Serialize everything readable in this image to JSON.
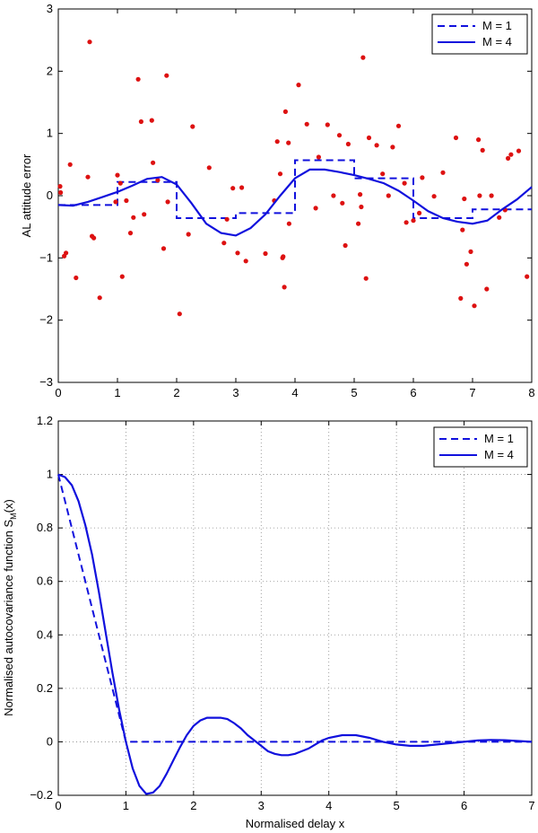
{
  "chart_data": [
    {
      "type": "scatter",
      "title": "",
      "xlabel": "",
      "ylabel": "AL attitude error",
      "xlim": [
        0,
        8
      ],
      "ylim": [
        -3,
        3
      ],
      "xticks": [
        0,
        1,
        2,
        3,
        4,
        5,
        6,
        7,
        8
      ],
      "yticks": [
        -3,
        -2,
        -1,
        0,
        1,
        2,
        3
      ],
      "grid": false,
      "legend_position": "top-right",
      "series": [
        {
          "name": "M = 1",
          "style": "dashed",
          "color": "#1111dd",
          "steps": [
            {
              "x0": 0,
              "x1": 1,
              "y": -0.15
            },
            {
              "x0": 1,
              "x1": 2,
              "y": 0.22
            },
            {
              "x0": 2,
              "x1": 3,
              "y": -0.36
            },
            {
              "x0": 3,
              "x1": 4,
              "y": -0.28
            },
            {
              "x0": 4,
              "x1": 5,
              "y": 0.57
            },
            {
              "x0": 5,
              "x1": 6,
              "y": 0.28
            },
            {
              "x0": 6,
              "x1": 7,
              "y": -0.36
            },
            {
              "x0": 7,
              "x1": 8,
              "y": -0.22
            }
          ]
        },
        {
          "name": "M = 4",
          "style": "solid",
          "color": "#1111dd",
          "x": [
            0,
            0.25,
            0.5,
            0.75,
            1.0,
            1.25,
            1.5,
            1.75,
            2.0,
            2.25,
            2.5,
            2.75,
            3.0,
            3.25,
            3.5,
            3.75,
            4.0,
            4.25,
            4.5,
            4.75,
            5.0,
            5.25,
            5.5,
            5.75,
            6.0,
            6.25,
            6.5,
            6.75,
            7.0,
            7.25,
            7.5,
            7.75,
            8.0
          ],
          "y": [
            -0.15,
            -0.16,
            -0.1,
            -0.02,
            0.06,
            0.16,
            0.27,
            0.3,
            0.18,
            -0.12,
            -0.45,
            -0.6,
            -0.64,
            -0.52,
            -0.3,
            0.0,
            0.28,
            0.42,
            0.42,
            0.38,
            0.33,
            0.27,
            0.2,
            0.08,
            -0.08,
            -0.25,
            -0.36,
            -0.42,
            -0.45,
            -0.4,
            -0.22,
            -0.06,
            0.14
          ]
        },
        {
          "name": "data points",
          "style": "markers",
          "color": "#dd1111",
          "x": [
            0.03,
            0.04,
            0.1,
            0.13,
            0.2,
            0.3,
            0.5,
            0.53,
            0.57,
            0.6,
            0.7,
            0.97,
            1.0,
            1.05,
            1.08,
            1.15,
            1.22,
            1.27,
            1.35,
            1.4,
            1.45,
            1.58,
            1.6,
            1.68,
            1.78,
            1.83,
            1.85,
            2.05,
            2.2,
            2.27,
            2.55,
            2.8,
            2.85,
            2.95,
            3.03,
            3.1,
            3.17,
            3.5,
            3.65,
            3.7,
            3.75,
            3.79,
            3.8,
            3.82,
            3.84,
            3.89,
            3.9,
            4.06,
            4.2,
            4.35,
            4.4,
            4.55,
            4.65,
            4.75,
            4.8,
            4.85,
            4.9,
            5.07,
            5.1,
            5.12,
            5.15,
            5.2,
            5.25,
            5.38,
            5.48,
            5.58,
            5.65,
            5.75,
            5.85,
            5.88,
            6.0,
            6.1,
            6.15,
            6.35,
            6.5,
            6.72,
            6.8,
            6.83,
            6.86,
            6.9,
            6.97,
            7.03,
            7.1,
            7.12,
            7.17,
            7.24,
            7.32,
            7.45,
            7.55,
            7.6,
            7.65,
            7.78,
            7.92
          ],
          "y": [
            0.15,
            0.05,
            -0.97,
            -0.92,
            0.5,
            -1.32,
            0.3,
            2.47,
            -0.65,
            -0.68,
            -1.64,
            -0.1,
            0.33,
            0.2,
            -1.3,
            -0.08,
            -0.6,
            -0.35,
            1.87,
            1.19,
            -0.3,
            1.21,
            0.53,
            0.25,
            -0.85,
            1.93,
            -0.1,
            -1.9,
            -0.62,
            1.11,
            0.45,
            -0.76,
            -0.38,
            0.12,
            -0.92,
            0.13,
            -1.05,
            -0.93,
            -0.08,
            0.87,
            0.35,
            -1.0,
            -0.98,
            -1.47,
            1.35,
            0.85,
            -0.45,
            1.78,
            1.15,
            -0.2,
            0.62,
            1.14,
            0.0,
            0.97,
            -0.12,
            -0.8,
            0.83,
            -0.45,
            0.02,
            -0.18,
            2.22,
            -1.33,
            0.93,
            0.81,
            0.35,
            0.0,
            0.78,
            1.12,
            0.2,
            -0.43,
            -0.4,
            -0.28,
            0.29,
            -0.01,
            0.37,
            0.93,
            -1.65,
            -0.55,
            -0.05,
            -1.1,
            -0.9,
            -1.77,
            0.9,
            0.0,
            0.73,
            -1.5,
            0.0,
            -0.35,
            -0.23,
            0.6,
            0.66,
            0.72,
            -1.3
          ]
        }
      ]
    },
    {
      "type": "line",
      "title": "",
      "xlabel": "Normalised delay x",
      "ylabel": "Normalised autocovariance function S",
      "ylabel_sub": "M",
      "ylabel_suffix": "(x)",
      "xlim": [
        0,
        7
      ],
      "ylim": [
        -0.2,
        1.2
      ],
      "xticks": [
        0,
        1,
        2,
        3,
        4,
        5,
        6,
        7
      ],
      "yticks": [
        -0.2,
        0,
        0.2,
        0.4,
        0.6,
        0.8,
        1,
        1.2
      ],
      "ytick_labels": [
        "−0.2",
        "0",
        "0.2",
        "0.4",
        "0.6",
        "0.8",
        "1",
        "1.2"
      ],
      "grid": true,
      "legend_position": "top-right",
      "series": [
        {
          "name": "M = 1",
          "style": "dashed",
          "color": "#1111dd",
          "x": [
            0,
            1,
            7
          ],
          "y": [
            1,
            0,
            0
          ]
        },
        {
          "name": "M = 4",
          "style": "solid",
          "color": "#1111dd",
          "x": [
            0,
            0.1,
            0.2,
            0.3,
            0.4,
            0.5,
            0.6,
            0.7,
            0.8,
            0.9,
            1.0,
            1.1,
            1.2,
            1.3,
            1.4,
            1.5,
            1.6,
            1.7,
            1.8,
            1.9,
            2.0,
            2.1,
            2.2,
            2.3,
            2.4,
            2.5,
            2.6,
            2.7,
            2.8,
            2.9,
            3.0,
            3.1,
            3.2,
            3.3,
            3.4,
            3.5,
            3.6,
            3.7,
            3.8,
            3.9,
            4.0,
            4.2,
            4.4,
            4.6,
            4.8,
            5.0,
            5.2,
            5.4,
            5.6,
            5.8,
            6.0,
            6.2,
            6.4,
            6.6,
            6.8,
            7.0
          ],
          "y": [
            1.0,
            0.99,
            0.96,
            0.9,
            0.81,
            0.7,
            0.56,
            0.41,
            0.26,
            0.12,
            0.0,
            -0.1,
            -0.165,
            -0.195,
            -0.19,
            -0.165,
            -0.12,
            -0.07,
            -0.02,
            0.025,
            0.06,
            0.08,
            0.09,
            0.09,
            0.09,
            0.085,
            0.07,
            0.05,
            0.025,
            0.005,
            -0.015,
            -0.035,
            -0.045,
            -0.05,
            -0.05,
            -0.045,
            -0.035,
            -0.025,
            -0.01,
            0.005,
            0.015,
            0.025,
            0.025,
            0.015,
            0.0,
            -0.01,
            -0.015,
            -0.015,
            -0.01,
            -0.005,
            0.0,
            0.005,
            0.007,
            0.006,
            0.003,
            0.0
          ]
        }
      ]
    }
  ]
}
